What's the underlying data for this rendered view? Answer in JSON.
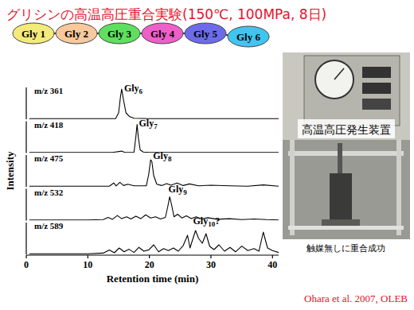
{
  "title": "グリシンの高温高圧重合実験(150℃, 100MPa, 8日)",
  "chain": [
    {
      "label": "Gly 1",
      "color": "#f3ea7a"
    },
    {
      "label": "Gly 2",
      "color": "#f7c99c"
    },
    {
      "label": "Gly 3",
      "color": "#5ee05e"
    },
    {
      "label": "Gly 4",
      "color": "#ee5fc8"
    },
    {
      "label": "Gly 5",
      "color": "#6c6cea"
    },
    {
      "label": "Gly 6",
      "color": "#3fc6f0"
    }
  ],
  "y_label": "Intensity",
  "photo_label": "高温高圧発生装置",
  "note": "触媒無しに重合成功",
  "citation": "Ohara et al. 2007, OLEB",
  "chart_data": [
    {
      "type": "line",
      "title": "m/z 361",
      "color": "#000000",
      "grid": false,
      "tick_labels": false,
      "xlim": [
        0,
        41
      ],
      "ylim": [
        0,
        100
      ],
      "x": [
        0.5,
        3,
        6,
        9,
        12,
        14.5,
        15.0,
        15.3,
        15.5,
        15.8,
        16.2,
        16.8,
        17.5,
        20,
        24,
        28,
        32,
        36,
        41
      ],
      "values": [
        2,
        2,
        2,
        2,
        2,
        2,
        20,
        70,
        95,
        60,
        20,
        8,
        3,
        2,
        2,
        2,
        2,
        2,
        2
      ],
      "annotations": [
        {
          "text": "Gly",
          "subscript": "6",
          "x": 15.9,
          "y": 88
        }
      ]
    },
    {
      "type": "line",
      "title": "m/z 418",
      "color": "#000000",
      "grid": false,
      "tick_labels": false,
      "xlim": [
        0,
        41
      ],
      "ylim": [
        0,
        100
      ],
      "x": [
        0.5,
        5,
        10,
        14,
        15.5,
        16,
        17.5,
        17.8,
        18.0,
        18.2,
        18.5,
        19,
        20,
        24,
        28,
        32,
        36,
        41
      ],
      "values": [
        2,
        2,
        2,
        2,
        6,
        2,
        2,
        50,
        90,
        50,
        10,
        3,
        2,
        2,
        2,
        2,
        2,
        2
      ],
      "annotations": [
        {
          "text": "Gly",
          "subscript": "7",
          "x": 18.3,
          "y": 85
        }
      ]
    },
    {
      "type": "line",
      "title": "m/z 475",
      "color": "#000000",
      "grid": false,
      "tick_labels": false,
      "xlim": [
        0,
        41
      ],
      "ylim": [
        0,
        100
      ],
      "x": [
        0.5,
        5,
        10,
        13.5,
        14.2,
        14.6,
        15.2,
        15.8,
        16.5,
        17.5,
        19.5,
        19.9,
        20.2,
        20.4,
        20.7,
        21.2,
        22,
        22.8,
        23.5,
        24.5,
        25.5,
        26.5,
        28,
        30,
        33,
        36,
        38.5,
        41
      ],
      "values": [
        2,
        2,
        2,
        2,
        12,
        3,
        14,
        4,
        8,
        3,
        3,
        40,
        85,
        80,
        35,
        8,
        4,
        10,
        5,
        12,
        4,
        9,
        3,
        5,
        3,
        2,
        6,
        2
      ],
      "annotations": [
        {
          "text": "Gly",
          "subscript": "8",
          "x": 20.6,
          "y": 88
        }
      ]
    },
    {
      "type": "line",
      "title": "m/z 532",
      "color": "#000000",
      "grid": false,
      "tick_labels": false,
      "xlim": [
        0,
        41
      ],
      "ylim": [
        0,
        100
      ],
      "x": [
        0.5,
        5,
        10,
        12.5,
        13.3,
        14,
        14.8,
        15.5,
        16.3,
        17,
        17.8,
        18.6,
        19.4,
        20.2,
        21,
        21.8,
        22.6,
        23.0,
        23.3,
        23.6,
        24.0,
        24.6,
        25.3,
        26,
        26.8,
        27.6,
        28.5,
        29.5,
        31,
        33,
        35,
        37,
        39,
        41
      ],
      "values": [
        2,
        2,
        2,
        3,
        10,
        4,
        16,
        6,
        12,
        5,
        14,
        6,
        18,
        8,
        12,
        5,
        10,
        45,
        75,
        50,
        12,
        20,
        8,
        15,
        6,
        12,
        5,
        9,
        4,
        6,
        3,
        5,
        3,
        2
      ],
      "annotations": [
        {
          "text": "Gly",
          "subscript": "9",
          "x": 23.1,
          "y": 88
        }
      ]
    },
    {
      "type": "line",
      "title": "m/z 589",
      "color": "#000000",
      "grid": false,
      "tick_labels": "x",
      "x_label": "Retention time (min)",
      "xlim": [
        0,
        41
      ],
      "ylim": [
        0,
        100
      ],
      "xticks": [
        0,
        10,
        20,
        30,
        40
      ],
      "x": [
        0.5,
        5,
        10,
        12.5,
        13.5,
        14.3,
        15.1,
        15.9,
        16.7,
        17.5,
        18.3,
        19.1,
        19.9,
        20.7,
        21.5,
        22.3,
        23.1,
        23.9,
        24.7,
        25.5,
        26.2,
        26.6,
        27.0,
        27.5,
        28.0,
        28.6,
        29.2,
        29.8,
        30.5,
        31.3,
        32.2,
        33.1,
        34,
        35,
        36,
        37,
        37.8,
        38.5,
        39.2,
        40,
        41
      ],
      "values": [
        2,
        2,
        2,
        4,
        14,
        5,
        20,
        8,
        16,
        6,
        22,
        10,
        14,
        30,
        8,
        18,
        12,
        20,
        10,
        28,
        60,
        20,
        45,
        75,
        50,
        35,
        65,
        25,
        15,
        30,
        10,
        22,
        8,
        26,
        12,
        18,
        10,
        70,
        20,
        12,
        6
      ],
      "annotations": [
        {
          "text": "Gly",
          "subscript": "10",
          "suffix": "?",
          "x": 27.1,
          "y": 96
        }
      ]
    }
  ]
}
